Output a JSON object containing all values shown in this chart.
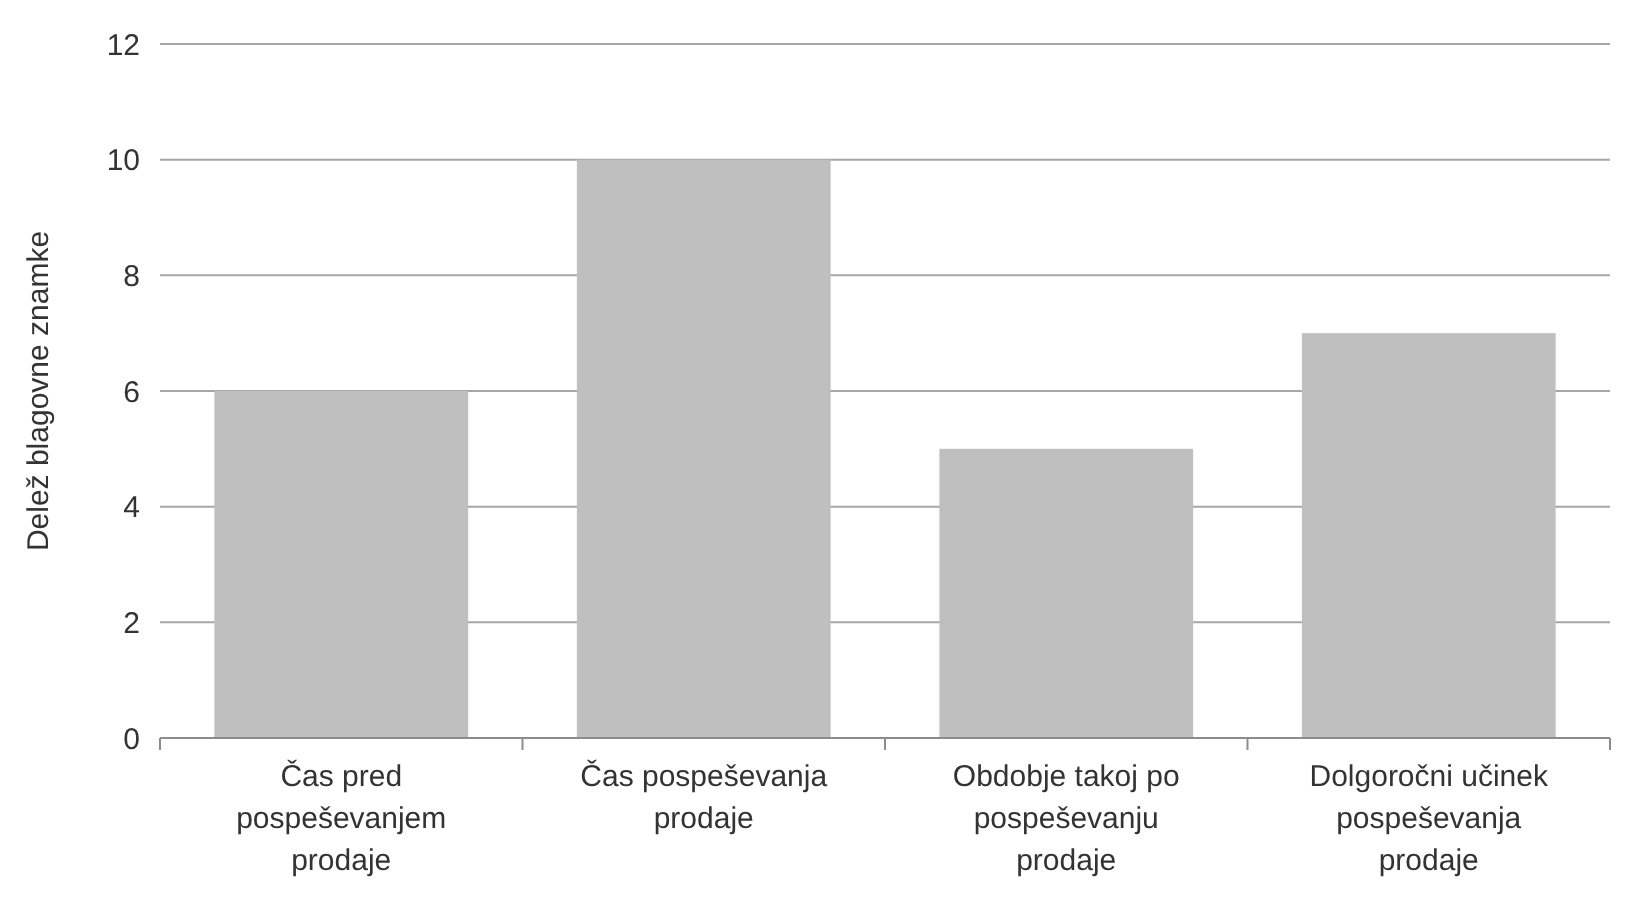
{
  "chart_data": {
    "type": "bar",
    "ylabel": "Delež blagovne znamke",
    "categories": [
      "Čas pred pospeševanjem prodaje",
      "Čas pospeševanja prodaje",
      "Obdobje takoj po pospeševanju prodaje",
      "Dolgoročni učinek pospeševanja prodaje"
    ],
    "values": [
      6,
      10,
      5,
      7
    ],
    "color": "#bfbfbf",
    "ylim": [
      0,
      12
    ],
    "yticks": [
      0,
      2,
      4,
      6,
      8,
      10,
      12
    ],
    "grid": "y"
  }
}
